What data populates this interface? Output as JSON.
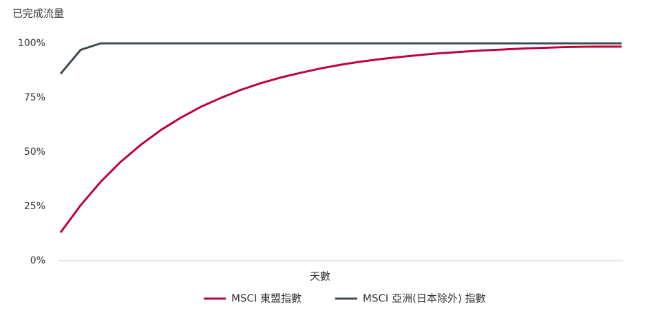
{
  "chart_data": {
    "type": "line",
    "title": "已完成流量",
    "x_label": "天數",
    "categories": [
      null,
      null,
      null,
      null,
      null,
      null,
      null,
      null,
      null,
      null,
      null,
      null,
      null,
      null,
      null,
      null,
      null,
      null,
      null,
      null,
      null,
      null,
      null,
      null,
      null,
      null,
      null,
      null,
      null
    ],
    "series": [
      {
        "name": "MSCI 東盟指數",
        "color": "#c0003c",
        "values": [
          13,
          25.5,
          36.3,
          45.5,
          53.3,
          60.1,
          65.8,
          70.8,
          74.9,
          78.6,
          81.7,
          84.3,
          86.5,
          88.5,
          90.2,
          91.6,
          92.8,
          93.8,
          94.7,
          95.5,
          96.1,
          96.7,
          97.1,
          97.6,
          97.9,
          98.2,
          98.4,
          98.5,
          98.5
        ]
      },
      {
        "name": "MSCI 亞洲(日本除外) 指數",
        "color": "#3d4b52",
        "values": [
          86,
          97,
          100,
          100,
          100,
          100,
          100,
          100,
          100,
          100,
          100,
          100,
          100,
          100,
          100,
          100,
          100,
          100,
          100,
          100,
          100,
          100,
          100,
          100,
          100,
          100,
          100,
          100,
          100
        ]
      }
    ],
    "ylim": [
      0,
      100
    ],
    "yticks": [
      {
        "value": 0,
        "label": "0%"
      },
      {
        "value": 25,
        "label": "25%"
      },
      {
        "value": 50,
        "label": "50%"
      },
      {
        "value": 75,
        "label": "75%"
      },
      {
        "value": 100,
        "label": "100%"
      }
    ],
    "grid": false,
    "legend": "bottom"
  }
}
